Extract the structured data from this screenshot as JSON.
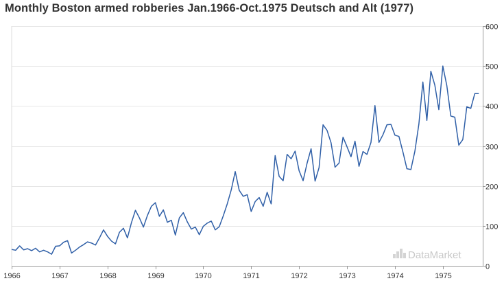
{
  "title": "Monthly Boston armed robberies Jan.1966-Oct.1975 Deutsch and Alt (1977)",
  "watermark": "DataMarket",
  "chart_data": {
    "type": "line",
    "title": "Monthly Boston armed robberies Jan.1966-Oct.1975 Deutsch and Alt (1977)",
    "xlabel": "",
    "ylabel": "",
    "x_range": [
      1966,
      1975.833
    ],
    "ylim": [
      0,
      600
    ],
    "y_ticks": [
      0,
      100,
      200,
      300,
      400,
      500,
      600
    ],
    "y_axis_side": "right",
    "x_ticks": [
      "1966",
      "1967",
      "1968",
      "1969",
      "1970",
      "1971",
      "1972",
      "1973",
      "1974",
      "1975"
    ],
    "grid": "horizontal",
    "legend": "none",
    "line_color": "#2f5fa7",
    "series": [
      {
        "values": [
          41,
          39,
          50,
          40,
          43,
          38,
          44,
          35,
          39,
          35,
          29,
          49,
          50,
          59,
          63,
          32,
          39,
          47,
          53,
          60,
          57,
          52,
          70,
          90,
          74,
          62,
          55,
          84,
          94,
          70,
          108,
          139,
          120,
          97,
          126,
          149,
          158,
          124,
          140,
          109,
          114,
          77,
          120,
          133,
          110,
          92,
          97,
          78,
          99,
          107,
          112,
          90,
          98,
          125,
          155,
          190,
          236,
          189,
          174,
          178,
          136,
          161,
          171,
          149,
          184,
          155,
          276,
          224,
          213,
          279,
          268,
          287,
          238,
          213,
          257,
          293,
          212,
          246,
          353,
          339,
          308,
          247,
          257,
          322,
          298,
          273,
          312,
          249,
          286,
          279,
          309,
          401,
          309,
          328,
          353,
          354,
          327,
          324,
          285,
          243,
          241,
          287,
          355,
          460,
          364,
          487,
          452,
          391,
          500,
          451,
          375,
          372,
          302,
          316,
          398,
          394,
          431,
          431
        ]
      }
    ]
  }
}
